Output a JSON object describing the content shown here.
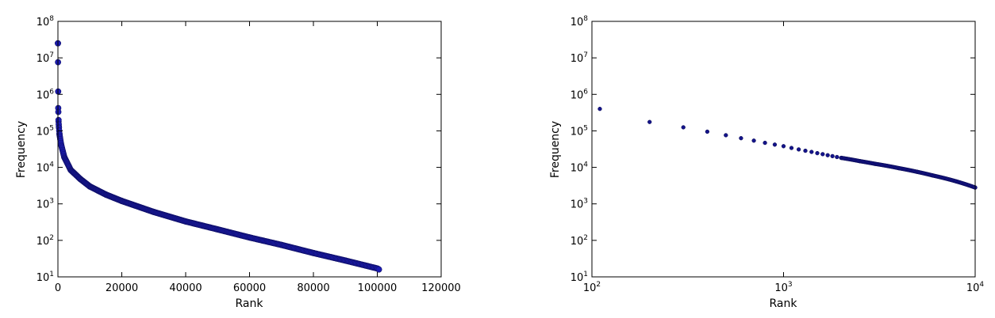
{
  "chart_data": [
    {
      "type": "scatter",
      "xlabel": "Rank",
      "ylabel": "Frequency",
      "x_scale": "linear",
      "y_scale": "log",
      "xlim": [
        0,
        120000
      ],
      "ylim": [
        10,
        100000000
      ],
      "x_ticks": [
        "0",
        "20000",
        "40000",
        "60000",
        "80000",
        "100000",
        "120000"
      ],
      "x_tick_values": [
        0,
        20000,
        40000,
        60000,
        80000,
        100000,
        120000
      ],
      "y_ticks": [
        {
          "base": "10",
          "exp": "1",
          "value": 10
        },
        {
          "base": "10",
          "exp": "2",
          "value": 100
        },
        {
          "base": "10",
          "exp": "3",
          "value": 1000
        },
        {
          "base": "10",
          "exp": "4",
          "value": 10000
        },
        {
          "base": "10",
          "exp": "5",
          "value": 100000
        },
        {
          "base": "10",
          "exp": "6",
          "value": 1000000
        },
        {
          "base": "10",
          "exp": "7",
          "value": 10000000
        },
        {
          "base": "10",
          "exp": "8",
          "value": 100000000
        }
      ],
      "grid": false,
      "marker_color": "#1c1cb4",
      "series": [
        {
          "x": [
            1,
            100,
            200,
            300,
            500,
            1000,
            2000,
            4000,
            7000,
            10000,
            15000,
            20000,
            30000,
            40000,
            50000,
            60000,
            70000,
            80000,
            90000,
            100000,
            100500
          ],
          "y": [
            25000000,
            420000,
            180000,
            130000,
            80000,
            42000,
            19000,
            8500,
            4800,
            3000,
            1800,
            1200,
            600,
            330,
            200,
            120,
            75,
            45,
            28,
            17,
            16
          ]
        }
      ]
    },
    {
      "type": "scatter",
      "xlabel": "Rank",
      "ylabel": "Frequency",
      "x_scale": "log",
      "y_scale": "log",
      "xlim": [
        100,
        10000
      ],
      "ylim": [
        10,
        100000000
      ],
      "x_ticks": [
        {
          "base": "10",
          "exp": "2",
          "value": 100
        },
        {
          "base": "10",
          "exp": "3",
          "value": 1000
        },
        {
          "base": "10",
          "exp": "4",
          "value": 10000
        }
      ],
      "y_ticks": [
        {
          "base": "10",
          "exp": "1",
          "value": 10
        },
        {
          "base": "10",
          "exp": "2",
          "value": 100
        },
        {
          "base": "10",
          "exp": "3",
          "value": 1000
        },
        {
          "base": "10",
          "exp": "4",
          "value": 10000
        },
        {
          "base": "10",
          "exp": "5",
          "value": 100000
        },
        {
          "base": "10",
          "exp": "6",
          "value": 1000000
        },
        {
          "base": "10",
          "exp": "7",
          "value": 10000000
        },
        {
          "base": "10",
          "exp": "8",
          "value": 100000000
        }
      ],
      "grid": false,
      "marker_color": "#14148a",
      "series": [
        {
          "x": [
            110,
            200,
            300,
            400,
            500,
            600,
            700,
            800,
            900,
            1000,
            1100,
            1200,
            1300,
            1400,
            1500,
            1600,
            1700,
            1800,
            1900,
            2000,
            2500,
            3000,
            4000,
            5000,
            6000,
            8000,
            10000
          ],
          "y": [
            400000,
            175000,
            125000,
            95000,
            76000,
            63000,
            54000,
            47000,
            42000,
            38000,
            34000,
            31000,
            28500,
            26500,
            24500,
            23000,
            21500,
            20300,
            19200,
            18200,
            14800,
            12500,
            9500,
            7500,
            6000,
            4100,
            2800
          ]
        }
      ]
    }
  ]
}
